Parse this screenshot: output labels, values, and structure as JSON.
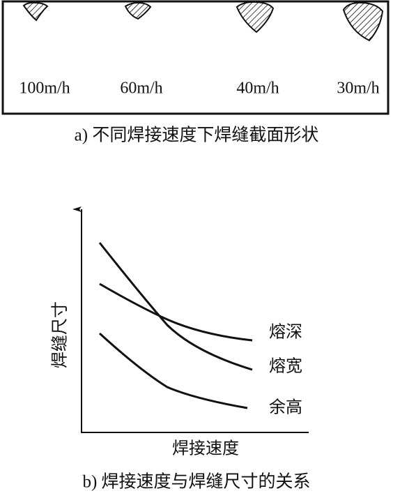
{
  "part_a": {
    "speeds": [
      "100m/h",
      "60m/h",
      "40m/h",
      "30m/h"
    ],
    "caption": "a) 不同焊接速度下焊缝截面形状"
  },
  "part_b": {
    "y_axis_label": "焊缝尺寸",
    "x_axis_label": "焊接速度",
    "curve_labels": [
      "熔深",
      "熔宽",
      "余高"
    ],
    "caption": "b) 焊接速度与焊缝尺寸的关系"
  }
}
